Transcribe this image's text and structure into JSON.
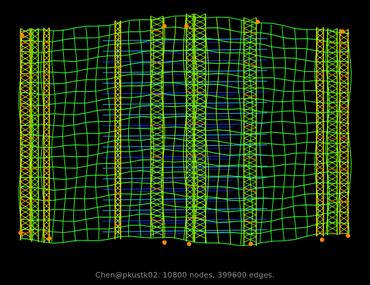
{
  "caption": "Chen@pkustk02. 10800 nodes, 399600 edges.",
  "colors": {
    "background": "#000000",
    "caption": "#8a8a8a",
    "edge_green": "#33ff33",
    "edge_lime": "#99ff00",
    "edge_yellow": "#ffee00",
    "edge_orange": "#ff9900",
    "edge_red": "#ff3300",
    "edge_cyan": "#22aaff",
    "edge_blue": "#1133ff",
    "node": "#ff8800"
  }
}
